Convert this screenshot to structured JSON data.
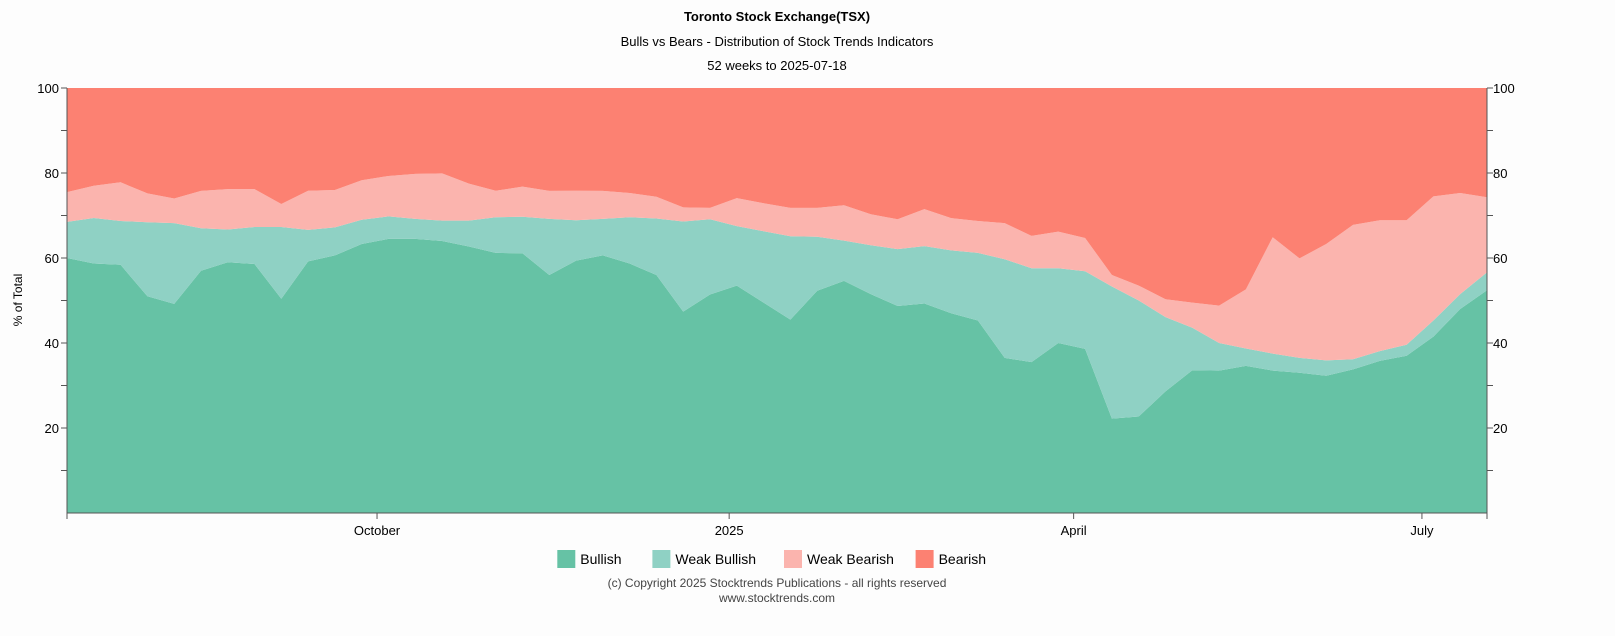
{
  "chart_data": {
    "type": "area",
    "stacked": true,
    "title": "Toronto Stock Exchange(TSX)",
    "subtitle": "Bulls vs Bears - Distribution of Stock Trends Indicators",
    "subtitle2": "52 weeks to 2025-07-18",
    "ylabel": "% of Total",
    "ylim": [
      0,
      100
    ],
    "y_ticks": [
      20,
      40,
      60,
      80,
      100
    ],
    "x_ticks": [
      {
        "date": "2024-10-01",
        "label": "October"
      },
      {
        "date": "2025-01-01",
        "label": "2025"
      },
      {
        "date": "2025-04-01",
        "label": "April"
      },
      {
        "date": "2025-07-01",
        "label": "July"
      }
    ],
    "legend_position": "bottom",
    "grid": false,
    "dates": [
      "2024-07-12",
      "2024-07-19",
      "2024-07-26",
      "2024-08-02",
      "2024-08-09",
      "2024-08-16",
      "2024-08-23",
      "2024-08-30",
      "2024-09-06",
      "2024-09-13",
      "2024-09-20",
      "2024-09-27",
      "2024-10-04",
      "2024-10-11",
      "2024-10-18",
      "2024-10-25",
      "2024-11-01",
      "2024-11-08",
      "2024-11-15",
      "2024-11-22",
      "2024-11-29",
      "2024-12-06",
      "2024-12-13",
      "2024-12-20",
      "2024-12-27",
      "2025-01-03",
      "2025-01-10",
      "2025-01-17",
      "2025-01-24",
      "2025-01-31",
      "2025-02-07",
      "2025-02-14",
      "2025-02-21",
      "2025-02-28",
      "2025-03-07",
      "2025-03-14",
      "2025-03-21",
      "2025-03-28",
      "2025-04-04",
      "2025-04-11",
      "2025-04-18",
      "2025-04-25",
      "2025-05-02",
      "2025-05-09",
      "2025-05-16",
      "2025-05-23",
      "2025-05-30",
      "2025-06-06",
      "2025-06-13",
      "2025-06-20",
      "2025-06-27",
      "2025-07-04",
      "2025-07-11",
      "2025-07-18"
    ],
    "series": [
      {
        "name": "Bullish",
        "color": "#66c2a5",
        "values": [
          60,
          58.7,
          58.4,
          51,
          49.2,
          57,
          59,
          58.6,
          50.4,
          59.2,
          60.6,
          63.3,
          64.5,
          64.5,
          64,
          62.7,
          61.2,
          61.1,
          56,
          59.4,
          60.6,
          58.7,
          56,
          47.4,
          51.4,
          53.5,
          49.5,
          45.5,
          52.3,
          54.6,
          51.5,
          48.7,
          49.3,
          47,
          45.3,
          36.5,
          35.5,
          40,
          38.6,
          22.2,
          22.7,
          28.6,
          33.6,
          33.5,
          34.6,
          33.5,
          33,
          32.3,
          33.8,
          35.8,
          37,
          41.5,
          48,
          52.4
        ]
      },
      {
        "name": "Weak Bullish",
        "color": "#8fd1c4",
        "values": [
          8.5,
          10.7,
          10.3,
          17.4,
          19,
          10,
          7.7,
          8.7,
          16.9,
          7.4,
          6.6,
          5.7,
          5.3,
          4.7,
          4.8,
          6.1,
          8.4,
          8.6,
          13.2,
          9.5,
          8.6,
          10.9,
          13.3,
          21.2,
          17.7,
          14,
          16.8,
          19.6,
          12.7,
          9.5,
          11.5,
          13.4,
          13.5,
          14.8,
          15.9,
          23.2,
          22.1,
          17.6,
          18.3,
          31.1,
          27.3,
          17.5,
          10,
          6.5,
          4.1,
          4,
          3.5,
          3.6,
          2.4,
          2.3,
          2.6,
          3.8,
          3.5,
          4.2
        ]
      },
      {
        "name": "Weak Bearish",
        "color": "#fbb4ae",
        "values": [
          7,
          7.6,
          9.1,
          6.8,
          5.8,
          8.8,
          9.5,
          8.9,
          5.4,
          9.2,
          8.8,
          9.3,
          9.5,
          10.6,
          11.1,
          8.7,
          6.2,
          7.1,
          6.6,
          6.9,
          6.6,
          5.7,
          5.1,
          3.3,
          2.7,
          6.6,
          6.6,
          6.7,
          6.8,
          8.3,
          7.3,
          7,
          8.7,
          7.6,
          7.5,
          8.5,
          7.6,
          8.6,
          7.8,
          2.7,
          3.5,
          4.2,
          5.9,
          8.8,
          13.9,
          27.4,
          23.4,
          27.4,
          31.6,
          30.8,
          29.3,
          29.2,
          23.8,
          17.7
        ]
      },
      {
        "name": "Bearish",
        "color": "#fc8172",
        "values": [
          24.5,
          23,
          22.2,
          24.8,
          26,
          24.2,
          23.8,
          23.8,
          27.3,
          24.2,
          24,
          21.7,
          20.7,
          20.2,
          20.1,
          22.5,
          24.2,
          23.2,
          24.2,
          24.2,
          24.2,
          24.7,
          25.6,
          28.1,
          28.2,
          25.9,
          27.1,
          28.2,
          28.2,
          27.6,
          29.7,
          30.9,
          28.5,
          30.6,
          31.3,
          31.8,
          34.8,
          33.8,
          35.3,
          44,
          46.5,
          49.7,
          50.5,
          51.2,
          47.4,
          35.1,
          40.1,
          36.7,
          32.2,
          31.1,
          31.1,
          25.5,
          24.7,
          25.7
        ]
      }
    ]
  },
  "footer": {
    "copyright": "(c) Copyright 2025 Stocktrends Publications - all rights reserved",
    "website": "www.stocktrends.com"
  }
}
